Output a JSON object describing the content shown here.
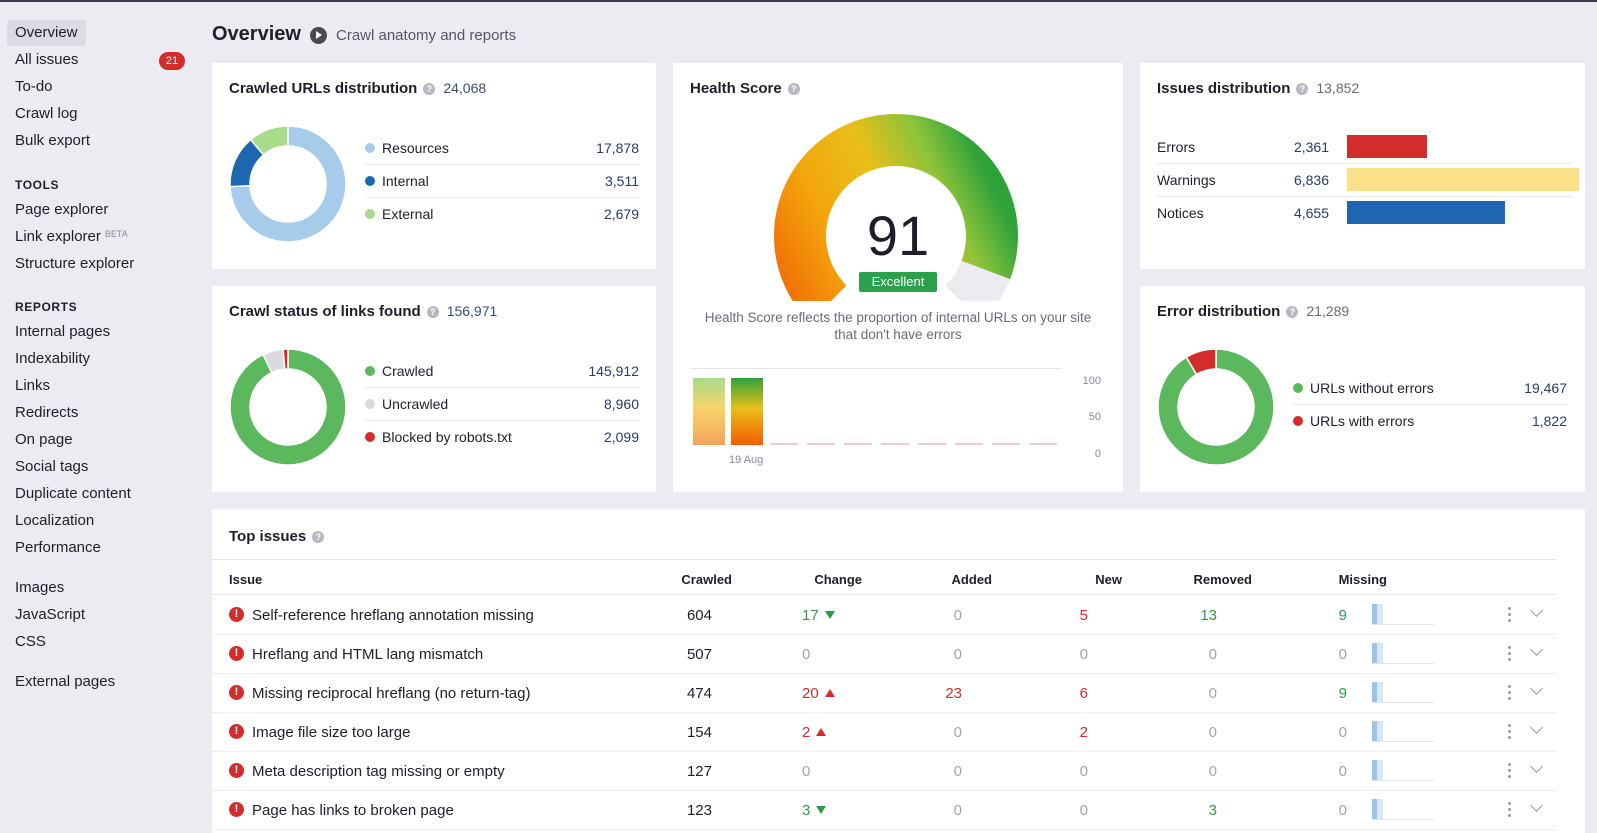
{
  "sidebar": {
    "items_top": [
      "Overview",
      "All issues",
      "To-do",
      "Crawl log",
      "Bulk export"
    ],
    "issues_badge": "21",
    "tools_heading": "TOOLS",
    "tools": [
      "Page explorer",
      "Link explorer",
      "Structure explorer"
    ],
    "beta_label": "BETA",
    "reports_heading": "REPORTS",
    "reports": [
      "Internal pages",
      "Indexability",
      "Links",
      "Redirects",
      "On page",
      "Social tags",
      "Duplicate content",
      "Localization",
      "Performance"
    ],
    "resources": [
      "Images",
      "JavaScript",
      "CSS"
    ],
    "external": "External pages"
  },
  "header": {
    "title": "Overview",
    "subtitle": "Crawl anatomy and reports"
  },
  "crawled_urls": {
    "title": "Crawled URLs distribution",
    "count": "24,068",
    "rows": [
      {
        "label": "Resources",
        "value": "17,878",
        "color": "#a7cbeb"
      },
      {
        "label": "Internal",
        "value": "3,511",
        "color": "#1f66b0"
      },
      {
        "label": "External",
        "value": "2,679",
        "color": "#a8dc8a"
      }
    ]
  },
  "crawl_status": {
    "title": "Crawl status of links found",
    "count": "156,971",
    "rows": [
      {
        "label": "Crawled",
        "value": "145,912",
        "color": "#5cb85c"
      },
      {
        "label": "Uncrawled",
        "value": "8,960",
        "color": "#d9d9de"
      },
      {
        "label": "Blocked by robots.txt",
        "value": "2,099",
        "color": "#d42b2b"
      }
    ]
  },
  "health": {
    "title": "Health Score",
    "score": "91",
    "score_fraction": 0.91,
    "badge": "Excellent",
    "description": "Health Score reflects the proportion of internal URLs on your site that don't have errors",
    "y_ticks": [
      "100",
      "50",
      "0"
    ],
    "x_label": "19 Aug"
  },
  "issues_dist": {
    "title": "Issues distribution",
    "count": "13,852",
    "rows": [
      {
        "label": "Errors",
        "value": "2,361",
        "color": "#d42b2b",
        "num": 2361
      },
      {
        "label": "Warnings",
        "value": "6,836",
        "color": "#fbe08a",
        "num": 6836
      },
      {
        "label": "Notices",
        "value": "4,655",
        "color": "#1f66b0",
        "num": 4655
      }
    ]
  },
  "error_dist": {
    "title": "Error distribution",
    "count": "21,289",
    "rows": [
      {
        "label": "URLs without errors",
        "value": "19,467",
        "color": "#5cb85c"
      },
      {
        "label": "URLs with errors",
        "value": "1,822",
        "color": "#d42b2b"
      }
    ]
  },
  "top_issues": {
    "title": "Top issues",
    "columns": [
      "Issue",
      "Crawled",
      "Change",
      "Added",
      "New",
      "Removed",
      "Missing"
    ],
    "rows": [
      {
        "issue": "Self-reference hreflang annotation missing",
        "crawled": "604",
        "change": "17",
        "change_dir": "down",
        "added": "0",
        "new": "5",
        "removed": "13",
        "missing": "9"
      },
      {
        "issue": "Hreflang and HTML lang mismatch",
        "crawled": "507",
        "change": "0",
        "change_dir": "none",
        "added": "0",
        "new": "0",
        "removed": "0",
        "missing": "0"
      },
      {
        "issue": "Missing reciprocal hreflang (no return-tag)",
        "crawled": "474",
        "change": "20",
        "change_dir": "up",
        "added": "23",
        "new": "6",
        "removed": "0",
        "missing": "9"
      },
      {
        "issue": "Image file size too large",
        "crawled": "154",
        "change": "2",
        "change_dir": "up",
        "added": "0",
        "new": "2",
        "removed": "0",
        "missing": "0"
      },
      {
        "issue": "Meta description tag missing or empty",
        "crawled": "127",
        "change": "0",
        "change_dir": "none",
        "added": "0",
        "new": "0",
        "removed": "0",
        "missing": "0"
      },
      {
        "issue": "Page has links to broken page",
        "crawled": "123",
        "change": "3",
        "change_dir": "down",
        "added": "0",
        "new": "0",
        "removed": "3",
        "missing": "0"
      }
    ]
  }
}
